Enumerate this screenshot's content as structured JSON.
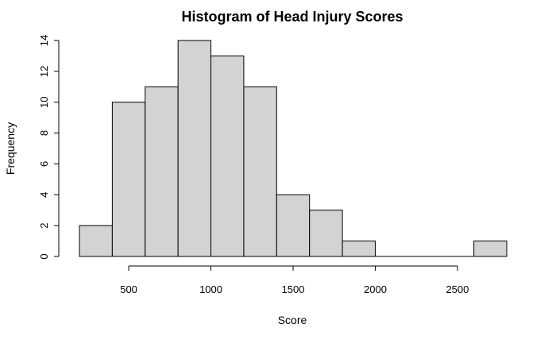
{
  "chart_data": {
    "type": "bar",
    "title": "Histogram of Head Injury Scores",
    "xlabel": "Score",
    "ylabel": "Frequency",
    "bins": [
      {
        "start": 200,
        "end": 400,
        "count": 2
      },
      {
        "start": 400,
        "end": 600,
        "count": 10
      },
      {
        "start": 600,
        "end": 800,
        "count": 11
      },
      {
        "start": 800,
        "end": 1000,
        "count": 14
      },
      {
        "start": 1000,
        "end": 1200,
        "count": 13
      },
      {
        "start": 1200,
        "end": 1400,
        "count": 11
      },
      {
        "start": 1400,
        "end": 1600,
        "count": 4
      },
      {
        "start": 1600,
        "end": 1800,
        "count": 3
      },
      {
        "start": 1800,
        "end": 2000,
        "count": 1
      },
      {
        "start": 2000,
        "end": 2200,
        "count": 0
      },
      {
        "start": 2200,
        "end": 2400,
        "count": 0
      },
      {
        "start": 2400,
        "end": 2600,
        "count": 0
      },
      {
        "start": 2600,
        "end": 2800,
        "count": 1
      }
    ],
    "x_ticks": [
      "500",
      "1000",
      "1500",
      "2000",
      "2500"
    ],
    "y_ticks": [
      "0",
      "2",
      "4",
      "6",
      "8",
      "10",
      "12",
      "14"
    ],
    "xlim": [
      200,
      2800
    ],
    "ylim": [
      0,
      14
    ],
    "grid": false,
    "bar_color": "#d3d3d3",
    "edge_color": "#000000"
  }
}
